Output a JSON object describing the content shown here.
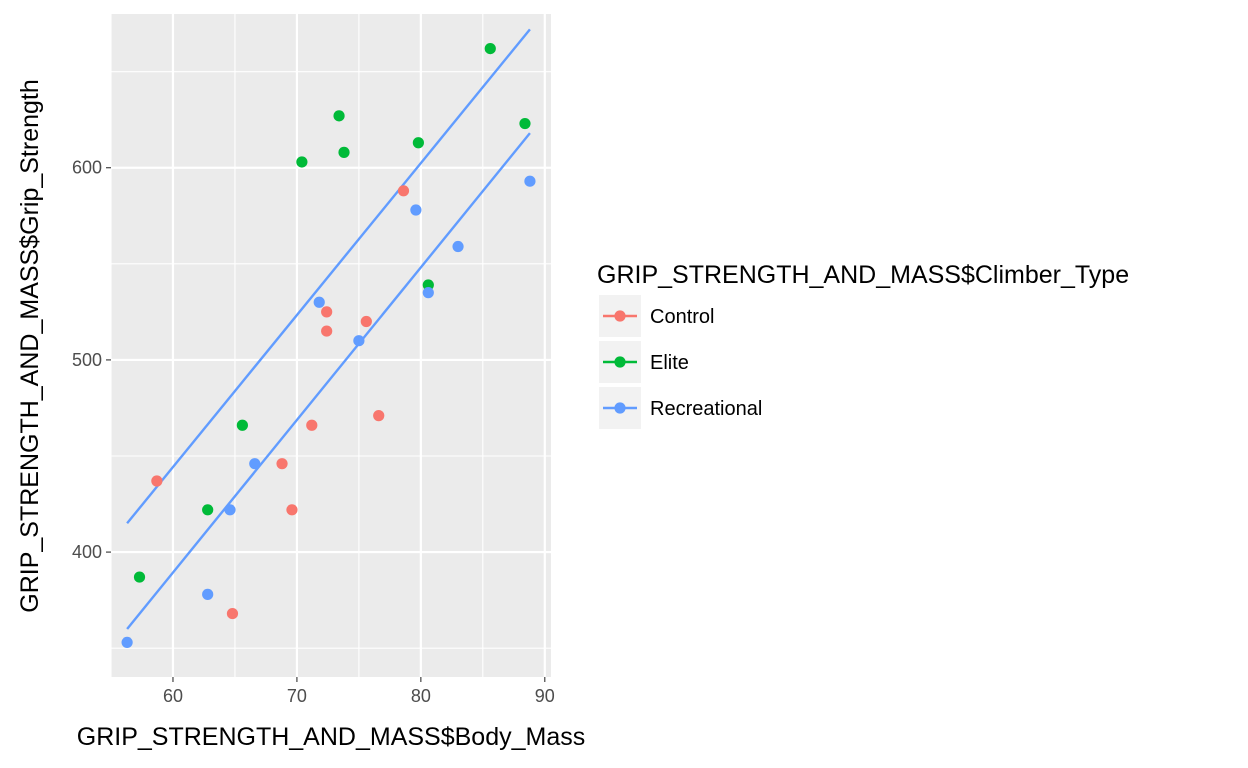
{
  "chart_data": {
    "type": "scatter",
    "xlabel": "GRIP_STRENGTH_AND_MASS$Body_Mass",
    "ylabel": "GRIP_STRENGTH_AND_MASS$Grip_Strength",
    "xlim": [
      55,
      90.5
    ],
    "ylim": [
      335,
      680
    ],
    "xticks": [
      60,
      70,
      80,
      90
    ],
    "yticks": [
      400,
      500,
      600
    ],
    "grid": true,
    "panel_background": "#ebebeb",
    "legend": {
      "title": "GRIP_STRENGTH_AND_MASS$Climber_Type",
      "position": "right"
    },
    "series": [
      {
        "name": "Control",
        "color": "#f8766d",
        "points": [
          {
            "x": 58.7,
            "y": 437
          },
          {
            "x": 64.8,
            "y": 368
          },
          {
            "x": 68.8,
            "y": 446
          },
          {
            "x": 69.6,
            "y": 422
          },
          {
            "x": 71.2,
            "y": 466
          },
          {
            "x": 72.4,
            "y": 525
          },
          {
            "x": 72.4,
            "y": 515
          },
          {
            "x": 75.6,
            "y": 520
          },
          {
            "x": 76.6,
            "y": 471
          },
          {
            "x": 78.6,
            "y": 588
          }
        ]
      },
      {
        "name": "Elite",
        "color": "#00ba38",
        "points": [
          {
            "x": 57.3,
            "y": 387
          },
          {
            "x": 62.8,
            "y": 422
          },
          {
            "x": 65.6,
            "y": 466
          },
          {
            "x": 70.4,
            "y": 603
          },
          {
            "x": 73.4,
            "y": 627
          },
          {
            "x": 73.8,
            "y": 608
          },
          {
            "x": 79.8,
            "y": 613
          },
          {
            "x": 80.6,
            "y": 539
          },
          {
            "x": 85.6,
            "y": 662
          },
          {
            "x": 88.4,
            "y": 623
          }
        ]
      },
      {
        "name": "Recreational",
        "color": "#619cff",
        "points": [
          {
            "x": 56.3,
            "y": 353
          },
          {
            "x": 62.8,
            "y": 378
          },
          {
            "x": 64.6,
            "y": 422
          },
          {
            "x": 66.6,
            "y": 446
          },
          {
            "x": 71.8,
            "y": 530
          },
          {
            "x": 75.0,
            "y": 510
          },
          {
            "x": 79.6,
            "y": 578
          },
          {
            "x": 80.6,
            "y": 535
          },
          {
            "x": 83.0,
            "y": 559
          },
          {
            "x": 88.8,
            "y": 593
          }
        ]
      }
    ],
    "fit_lines": [
      {
        "color": "#619cff",
        "x": [
          56.3,
          88.8
        ],
        "y": [
          415,
          672
        ]
      },
      {
        "color": "#619cff",
        "x": [
          56.3,
          88.8
        ],
        "y": [
          360,
          618
        ]
      }
    ]
  }
}
